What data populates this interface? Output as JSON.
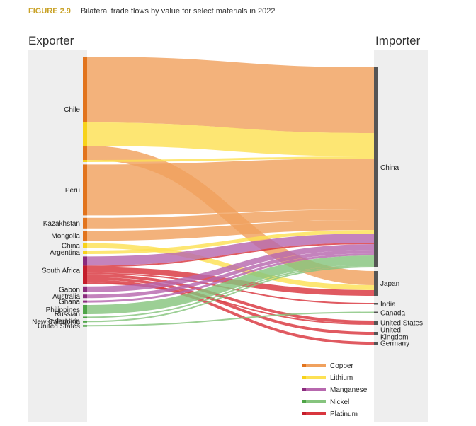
{
  "figure": {
    "label": "FIGURE 2.9",
    "title": "Bilateral trade flows by value for select materials in 2022"
  },
  "colors": {
    "figure_label": "#c9a227",
    "title": "#333333",
    "column_bg": "#eeeeee",
    "importer_bar": "#555555",
    "Copper": "#f0a15e",
    "Lithium": "#fde154",
    "Manganese": "#b768ae",
    "Nickel": "#86c47e",
    "Platinum": "#d9363e",
    "Copper_node": "#e2741d",
    "Lithium_node": "#f7d21a",
    "Manganese_node": "#8a2b7d",
    "Nickel_node": "#4ea447",
    "Platinum_node": "#c41d2b"
  },
  "chart_data": {
    "type": "sankey",
    "title": "Bilateral trade flows by value for select materials in 2022",
    "left_header": "Exporter",
    "right_header": "Importer",
    "exporters": [
      {
        "name": "Chile",
        "label": "Chile",
        "segments": [
          {
            "m": "Copper",
            "v": 93
          },
          {
            "m": "Lithium",
            "v": 33
          },
          {
            "m": "Copper",
            "v": 20
          },
          {
            "m": "Lithium",
            "v": 3
          }
        ]
      },
      {
        "name": "Peru",
        "label": "Peru",
        "segments": [
          {
            "m": "Copper",
            "v": 72
          }
        ]
      },
      {
        "name": "Kazakhstan",
        "label": "Kazakhstan",
        "segments": [
          {
            "m": "Copper",
            "v": 15
          }
        ]
      },
      {
        "name": "Mongolia",
        "label": "Mongolia",
        "segments": [
          {
            "m": "Copper",
            "v": 14
          }
        ]
      },
      {
        "name": "China",
        "label": "China",
        "segments": [
          {
            "m": "Lithium",
            "v": 7
          }
        ]
      },
      {
        "name": "Argentina",
        "label": "Argentina",
        "segments": [
          {
            "m": "Lithium",
            "v": 5
          }
        ]
      },
      {
        "name": "South Africa",
        "label": "South Africa",
        "segments": [
          {
            "m": "Manganese",
            "v": 13
          },
          {
            "m": "Platinum",
            "v": 26
          }
        ]
      },
      {
        "name": "Gabon",
        "label": "Gabon",
        "segments": [
          {
            "m": "Manganese",
            "v": 8
          }
        ]
      },
      {
        "name": "Australia",
        "label": "Australia",
        "segments": [
          {
            "m": "Manganese",
            "v": 5
          }
        ]
      },
      {
        "name": "Ghana",
        "label": "Ghana",
        "segments": [
          {
            "m": "Manganese",
            "v": 3
          }
        ]
      },
      {
        "name": "Philippines",
        "label": "Philippines",
        "segments": [
          {
            "m": "Nickel",
            "v": 13
          }
        ]
      },
      {
        "name": "Russian Federation",
        "label": "Russian\nFederation",
        "segments": [
          {
            "m": "Nickel",
            "v": 2
          }
        ]
      },
      {
        "name": "New Caledonia",
        "label": "New Caledonia",
        "segments": [
          {
            "m": "Nickel",
            "v": 2
          }
        ]
      },
      {
        "name": "United States",
        "label": "United States",
        "segments": [
          {
            "m": "Nickel",
            "v": 2
          }
        ]
      }
    ],
    "importers": [
      {
        "name": "China",
        "label": "China"
      },
      {
        "name": "Japan",
        "label": "Japan"
      },
      {
        "name": "India",
        "label": "India"
      },
      {
        "name": "Canada",
        "label": "Canada"
      },
      {
        "name": "United States",
        "label": "United States"
      },
      {
        "name": "United Kingdom",
        "label": "United\nKingdom"
      },
      {
        "name": "Germany",
        "label": "Germany"
      }
    ],
    "flows": [
      {
        "from": "Chile",
        "to": "China",
        "material": "Copper",
        "value": 93
      },
      {
        "from": "Chile",
        "to": "China",
        "material": "Lithium",
        "value": 33
      },
      {
        "from": "Chile",
        "to": "Japan",
        "material": "Copper",
        "value": 20
      },
      {
        "from": "Chile",
        "to": "China",
        "material": "Lithium",
        "value": 3
      },
      {
        "from": "Peru",
        "to": "China",
        "material": "Copper",
        "value": 72
      },
      {
        "from": "Kazakhstan",
        "to": "China",
        "material": "Copper",
        "value": 15
      },
      {
        "from": "Mongolia",
        "to": "China",
        "material": "Copper",
        "value": 14
      },
      {
        "from": "China",
        "to": "Japan",
        "material": "Lithium",
        "value": 7
      },
      {
        "from": "Argentina",
        "to": "China",
        "material": "Lithium",
        "value": 5
      },
      {
        "from": "South Africa",
        "to": "China",
        "material": "Manganese",
        "value": 13
      },
      {
        "from": "South Africa",
        "to": "China",
        "material": "Platinum",
        "value": 2
      },
      {
        "from": "South Africa",
        "to": "Japan",
        "material": "Platinum",
        "value": 8
      },
      {
        "from": "South Africa",
        "to": "India",
        "material": "Platinum",
        "value": 2
      },
      {
        "from": "South Africa",
        "to": "United States",
        "material": "Platinum",
        "value": 4
      },
      {
        "from": "South Africa",
        "to": "United Kingdom",
        "material": "Platinum",
        "value": 4
      },
      {
        "from": "South Africa",
        "to": "Germany",
        "material": "Platinum",
        "value": 4
      },
      {
        "from": "South Africa",
        "to": "United States",
        "material": "Platinum",
        "value": 2
      },
      {
        "from": "Gabon",
        "to": "China",
        "material": "Manganese",
        "value": 8
      },
      {
        "from": "Australia",
        "to": "China",
        "material": "Manganese",
        "value": 5
      },
      {
        "from": "Ghana",
        "to": "China",
        "material": "Manganese",
        "value": 3
      },
      {
        "from": "Philippines",
        "to": "China",
        "material": "Nickel",
        "value": 13
      },
      {
        "from": "Russian Federation",
        "to": "China",
        "material": "Nickel",
        "value": 2
      },
      {
        "from": "New Caledonia",
        "to": "China",
        "material": "Nickel",
        "value": 2
      },
      {
        "from": "United States",
        "to": "Canada",
        "material": "Nickel",
        "value": 2
      }
    ],
    "legend": [
      {
        "name": "Copper"
      },
      {
        "name": "Lithium"
      },
      {
        "name": "Manganese"
      },
      {
        "name": "Nickel"
      },
      {
        "name": "Platinum"
      }
    ],
    "legend_position": "bottom-right"
  }
}
